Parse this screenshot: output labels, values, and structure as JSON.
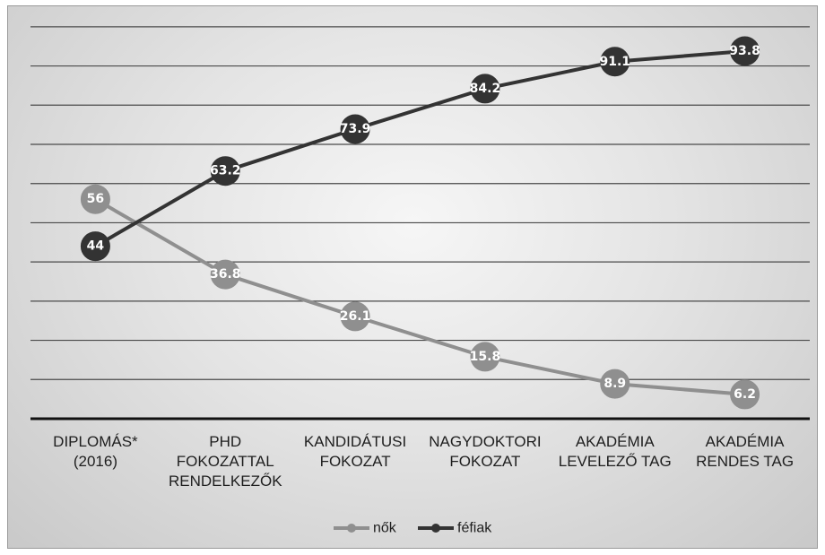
{
  "chart_data": {
    "type": "line",
    "categories": [
      [
        "DIPLOMÁS*",
        "(2016)"
      ],
      [
        "PHD",
        "FOKOZATTAL",
        "RENDELKEZŐK"
      ],
      [
        "KANDIDÁTUSI",
        "FOKOZAT"
      ],
      [
        "NAGYDOKTORI",
        "FOKOZAT"
      ],
      [
        "AKADÉMIA",
        "LEVELEZŐ TAG"
      ],
      [
        "AKADÉMIA",
        "RENDES TAG"
      ]
    ],
    "series": [
      {
        "name": "nők",
        "values": [
          56,
          36.8,
          26.1,
          15.8,
          8.9,
          6.2
        ],
        "labels": [
          "56",
          "36.8",
          "26.1",
          "15.8",
          "8.9",
          "6.2"
        ],
        "color": "#8f8f8f"
      },
      {
        "name": "féfiak",
        "values": [
          44,
          63.2,
          73.9,
          84.2,
          91.1,
          93.8
        ],
        "labels": [
          "44",
          "63.2",
          "73.9",
          "84.2",
          "91.1",
          "93.8"
        ],
        "color": "#333333"
      }
    ],
    "ylim": [
      0,
      105
    ],
    "grid": true,
    "y_tick_labels": false,
    "legend_position": "bottom"
  }
}
